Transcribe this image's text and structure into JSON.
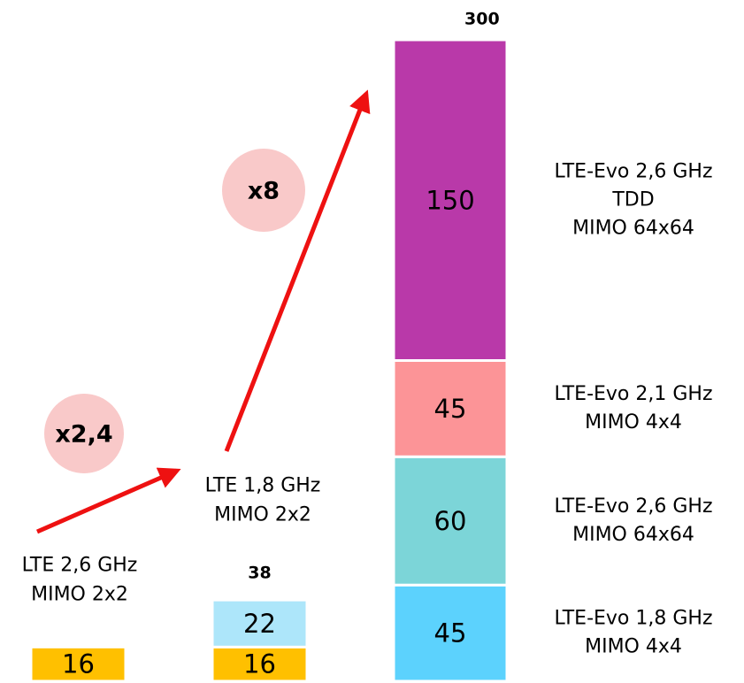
{
  "chart_data": {
    "type": "bar",
    "stacked": true,
    "bars": [
      {
        "label": [
          "LTE 2,6 GHz",
          "MIMO 2x2"
        ],
        "total": null,
        "segments": [
          {
            "value": 16,
            "color": "#ffc000"
          }
        ]
      },
      {
        "label": [
          "LTE 1,8 GHz",
          "MIMO 2x2"
        ],
        "total": 38,
        "segments": [
          {
            "value": 16,
            "color": "#ffc000"
          },
          {
            "value": 22,
            "color": "#ade6fa"
          }
        ]
      },
      {
        "label": null,
        "total": 300,
        "segments": [
          {
            "value": 45,
            "color": "#5cd2fd",
            "label": [
              "LTE-Evo 1,8 GHz",
              "MIMO 4x4"
            ]
          },
          {
            "value": 60,
            "color": "#7cd5d8",
            "label": [
              "LTE-Evo 2,6 GHz",
              "MIMO 64x64"
            ]
          },
          {
            "value": 45,
            "color": "#fc9497",
            "label": [
              "LTE-Evo 2,1 GHz",
              "MIMO 4x4"
            ]
          },
          {
            "value": 150,
            "color": "#b939a9",
            "label": [
              "LTE-Evo 2,6 GHz",
              "TDD",
              "MIMO 64x64"
            ]
          }
        ]
      }
    ],
    "annotations": [
      "x2,4",
      "x8"
    ]
  }
}
